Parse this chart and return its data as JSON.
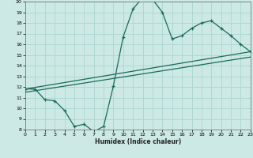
{
  "title": "",
  "xlabel": "Humidex (Indice chaleur)",
  "bg_color": "#cce9e5",
  "grid_color": "#b0d8d3",
  "line_color": "#1a6b5a",
  "xmin": 0,
  "xmax": 23,
  "ymin": 8,
  "ymax": 20,
  "xticks": [
    0,
    1,
    2,
    3,
    4,
    5,
    6,
    7,
    8,
    9,
    10,
    11,
    12,
    13,
    14,
    15,
    16,
    17,
    18,
    19,
    20,
    21,
    22,
    23
  ],
  "yticks": [
    8,
    9,
    10,
    11,
    12,
    13,
    14,
    15,
    16,
    17,
    18,
    19,
    20
  ],
  "curve1_x": [
    0,
    1,
    2,
    3,
    4,
    5,
    6,
    7,
    8,
    9,
    10,
    11,
    12,
    13,
    14,
    15,
    16,
    17,
    18,
    19,
    20,
    21,
    22,
    23
  ],
  "curve1_y": [
    11.8,
    11.8,
    10.8,
    10.7,
    9.8,
    8.3,
    8.5,
    7.8,
    8.3,
    12.1,
    16.7,
    19.3,
    20.4,
    20.2,
    19.0,
    16.5,
    16.8,
    17.5,
    18.0,
    18.2,
    17.5,
    16.8,
    16.0,
    15.3
  ],
  "line2_x": [
    0,
    23
  ],
  "line2_y": [
    11.8,
    15.3
  ],
  "line3_x": [
    0,
    23
  ],
  "line3_y": [
    11.5,
    14.8
  ]
}
